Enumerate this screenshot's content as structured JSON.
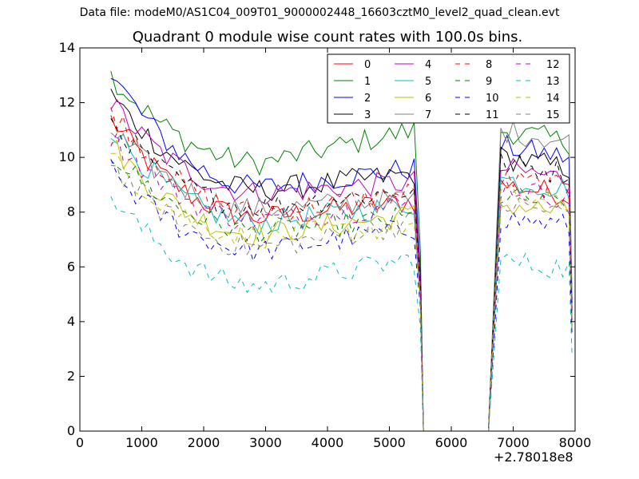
{
  "suptitle": "Data file: modeM0/AS1C04_009T01_9000002448_16603cztM0_level2_quad_clean.evt",
  "chart_data": {
    "type": "line",
    "title": "Quadrant 0 module wise count rates with 100.0s bins.",
    "xlabel": "",
    "ylabel": "",
    "x_offset_label": "+2.78018e8",
    "xlim": [
      0,
      8000
    ],
    "ylim": [
      0,
      14
    ],
    "xticks": [
      0,
      1000,
      2000,
      3000,
      4000,
      5000,
      6000,
      7000,
      8000
    ],
    "yticks": [
      0,
      2,
      4,
      6,
      8,
      10,
      12,
      14
    ],
    "grid": false,
    "legend": {
      "placement": "top-right",
      "columns": 4
    },
    "series": [
      {
        "name": "0",
        "color": "#ff0000",
        "dash": "solid",
        "start": 11.4,
        "mid": 7.8,
        "end": 8.4,
        "post": 9.0
      },
      {
        "name": "1",
        "color": "#008000",
        "dash": "solid",
        "start": 13.0,
        "mid": 9.8,
        "end": 11.0,
        "post": 11.0
      },
      {
        "name": "2",
        "color": "#0000ff",
        "dash": "solid",
        "start": 13.1,
        "mid": 8.9,
        "end": 9.6,
        "post": 10.4
      },
      {
        "name": "3",
        "color": "#000000",
        "dash": "solid",
        "start": 12.3,
        "mid": 8.8,
        "end": 9.4,
        "post": 10.0
      },
      {
        "name": "4",
        "color": "#bf00bf",
        "dash": "solid",
        "start": 12.0,
        "mid": 8.7,
        "end": 9.1,
        "post": 9.6
      },
      {
        "name": "5",
        "color": "#00bfbf",
        "dash": "solid",
        "start": 11.1,
        "mid": 7.6,
        "end": 8.3,
        "post": 9.2
      },
      {
        "name": "6",
        "color": "#bfbf00",
        "dash": "solid",
        "start": 10.5,
        "mid": 7.2,
        "end": 7.9,
        "post": 8.3
      },
      {
        "name": "7",
        "color": "#808080",
        "dash": "solid",
        "start": 11.0,
        "mid": 8.1,
        "end": 8.5,
        "post": 11.0
      },
      {
        "name": "8",
        "color": "#ff0000",
        "dash": "dashed",
        "start": 11.8,
        "mid": 8.0,
        "end": 8.7,
        "post": 9.2
      },
      {
        "name": "9",
        "color": "#008000",
        "dash": "dashed",
        "start": 10.2,
        "mid": 7.3,
        "end": 7.8,
        "post": 8.6
      },
      {
        "name": "10",
        "color": "#0000ff",
        "dash": "dashed",
        "start": 9.5,
        "mid": 6.6,
        "end": 7.4,
        "post": 7.8
      },
      {
        "name": "11",
        "color": "#000000",
        "dash": "dashed",
        "start": 11.3,
        "mid": 8.2,
        "end": 8.8,
        "post": 9.8
      },
      {
        "name": "12",
        "color": "#bf00bf",
        "dash": "dashed",
        "start": 10.8,
        "mid": 7.7,
        "end": 8.3,
        "post": 8.9
      },
      {
        "name": "13",
        "color": "#00bfbf",
        "dash": "dashed",
        "start": 8.6,
        "mid": 5.3,
        "end": 6.3,
        "post": 6.2
      },
      {
        "name": "14",
        "color": "#bfbf00",
        "dash": "dashed",
        "start": 10.0,
        "mid": 7.1,
        "end": 7.5,
        "post": 8.6
      },
      {
        "name": "15",
        "color": "#808080",
        "dash": "dashed",
        "start": 9.8,
        "mid": 6.7,
        "end": 7.6,
        "post": 8.3
      }
    ],
    "segments": {
      "first": [
        500,
        5400
      ],
      "gap": [
        5500,
        6600
      ],
      "second": [
        6800,
        7900
      ]
    }
  }
}
